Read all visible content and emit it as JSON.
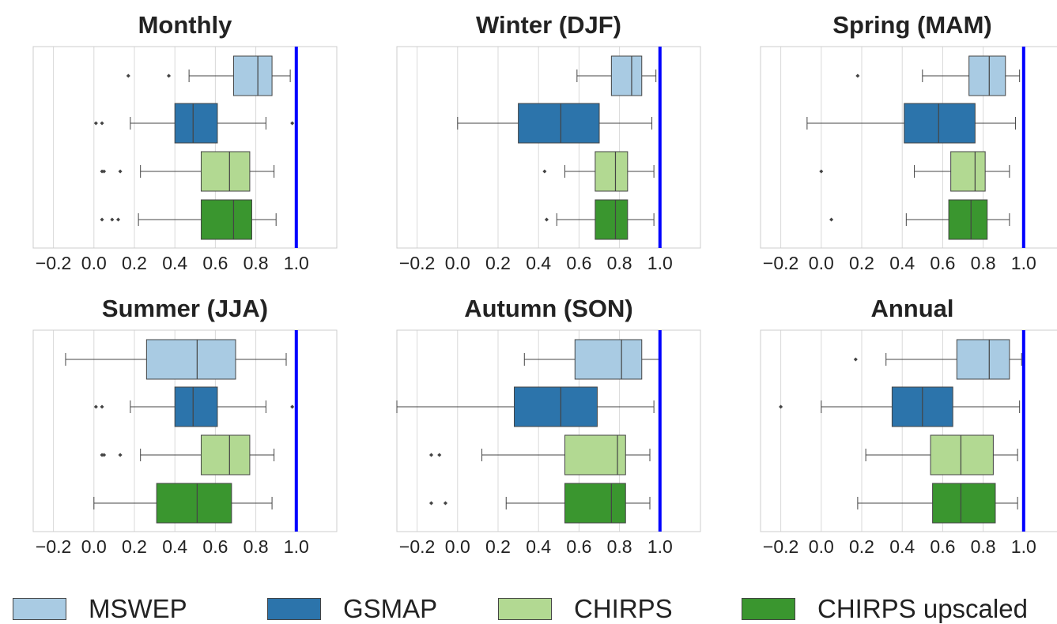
{
  "chart_data": [
    {
      "type": "boxplot",
      "title": "Monthly",
      "xlim": [
        -0.3,
        1.2
      ],
      "xticks": [
        -0.2,
        0.0,
        0.2,
        0.4,
        0.6,
        0.8,
        1.0
      ],
      "xtick_labels": [
        "−0.2",
        "0.0",
        "0.2",
        "0.4",
        "0.6",
        "0.8",
        "1.0"
      ],
      "reference_line": 1.0,
      "grid": true,
      "series": [
        {
          "name": "MSWEP",
          "whisker_low": 0.47,
          "q1": 0.69,
          "median": 0.81,
          "q3": 0.88,
          "whisker_high": 0.97,
          "outliers": [
            0.17,
            0.37
          ]
        },
        {
          "name": "GSMAP",
          "whisker_low": 0.18,
          "q1": 0.4,
          "median": 0.49,
          "q3": 0.61,
          "whisker_high": 0.85,
          "outliers": [
            0.01,
            0.04,
            0.98
          ]
        },
        {
          "name": "CHIRPS",
          "whisker_low": 0.23,
          "q1": 0.53,
          "median": 0.67,
          "q3": 0.77,
          "whisker_high": 0.89,
          "outliers": [
            0.04,
            0.05,
            0.13
          ]
        },
        {
          "name": "CHIRPS upscaled",
          "whisker_low": 0.22,
          "q1": 0.53,
          "median": 0.69,
          "q3": 0.78,
          "whisker_high": 0.9,
          "outliers": [
            0.04,
            0.09,
            0.12
          ]
        }
      ]
    },
    {
      "type": "boxplot",
      "title": "Winter (DJF)",
      "xlim": [
        -0.3,
        1.2
      ],
      "xticks": [
        -0.2,
        0.0,
        0.2,
        0.4,
        0.6,
        0.8,
        1.0
      ],
      "xtick_labels": [
        "−0.2",
        "0.0",
        "0.2",
        "0.4",
        "0.6",
        "0.8",
        "1.0"
      ],
      "reference_line": 1.0,
      "grid": true,
      "series": [
        {
          "name": "MSWEP",
          "whisker_low": 0.59,
          "q1": 0.76,
          "median": 0.86,
          "q3": 0.91,
          "whisker_high": 0.98,
          "outliers": []
        },
        {
          "name": "GSMAP",
          "whisker_low": 0.0,
          "q1": 0.3,
          "median": 0.51,
          "q3": 0.7,
          "whisker_high": 0.96,
          "outliers": []
        },
        {
          "name": "CHIRPS",
          "whisker_low": 0.53,
          "q1": 0.68,
          "median": 0.78,
          "q3": 0.84,
          "whisker_high": 0.97,
          "outliers": [
            0.43
          ]
        },
        {
          "name": "CHIRPS upscaled",
          "whisker_low": 0.49,
          "q1": 0.68,
          "median": 0.78,
          "q3": 0.84,
          "whisker_high": 0.97,
          "outliers": [
            0.44
          ]
        }
      ]
    },
    {
      "type": "boxplot",
      "title": "Spring (MAM)",
      "xlim": [
        -0.3,
        1.2
      ],
      "xticks": [
        -0.2,
        0.0,
        0.2,
        0.4,
        0.6,
        0.8,
        1.0
      ],
      "xtick_labels": [
        "−0.2",
        "0.0",
        "0.2",
        "0.4",
        "0.6",
        "0.8",
        "1.0"
      ],
      "reference_line": 1.0,
      "grid": true,
      "series": [
        {
          "name": "MSWEP",
          "whisker_low": 0.5,
          "q1": 0.73,
          "median": 0.83,
          "q3": 0.91,
          "whisker_high": 0.98,
          "outliers": [
            0.18
          ]
        },
        {
          "name": "GSMAP",
          "whisker_low": -0.07,
          "q1": 0.41,
          "median": 0.58,
          "q3": 0.76,
          "whisker_high": 0.96,
          "outliers": []
        },
        {
          "name": "CHIRPS",
          "whisker_low": 0.46,
          "q1": 0.64,
          "median": 0.76,
          "q3": 0.81,
          "whisker_high": 0.93,
          "outliers": [
            0.0
          ]
        },
        {
          "name": "CHIRPS upscaled",
          "whisker_low": 0.42,
          "q1": 0.63,
          "median": 0.74,
          "q3": 0.82,
          "whisker_high": 0.93,
          "outliers": [
            0.05
          ]
        }
      ]
    },
    {
      "type": "boxplot",
      "title": "Summer (JJA)",
      "xlim": [
        -0.3,
        1.2
      ],
      "xticks": [
        -0.2,
        0.0,
        0.2,
        0.4,
        0.6,
        0.8,
        1.0
      ],
      "xtick_labels": [
        "−0.2",
        "0.0",
        "0.2",
        "0.4",
        "0.6",
        "0.8",
        "1.0"
      ],
      "reference_line": 1.0,
      "grid": true,
      "series": [
        {
          "name": "MSWEP",
          "whisker_low": -0.14,
          "q1": 0.26,
          "median": 0.51,
          "q3": 0.7,
          "whisker_high": 0.95,
          "outliers": []
        },
        {
          "name": "GSMAP",
          "whisker_low": 0.18,
          "q1": 0.4,
          "median": 0.49,
          "q3": 0.61,
          "whisker_high": 0.85,
          "outliers": [
            0.01,
            0.04,
            0.98
          ]
        },
        {
          "name": "CHIRPS",
          "whisker_low": 0.23,
          "q1": 0.53,
          "median": 0.67,
          "q3": 0.77,
          "whisker_high": 0.89,
          "outliers": [
            0.04,
            0.05,
            0.13
          ]
        },
        {
          "name": "CHIRPS upscaled",
          "whisker_low": 0.0,
          "q1": 0.31,
          "median": 0.51,
          "q3": 0.68,
          "whisker_high": 0.88,
          "outliers": []
        }
      ]
    },
    {
      "type": "boxplot",
      "title": "Autumn (SON)",
      "xlim": [
        -0.3,
        1.2
      ],
      "xticks": [
        -0.2,
        0.0,
        0.2,
        0.4,
        0.6,
        0.8,
        1.0
      ],
      "xtick_labels": [
        "−0.2",
        "0.0",
        "0.2",
        "0.4",
        "0.6",
        "0.8",
        "1.0"
      ],
      "reference_line": 1.0,
      "grid": true,
      "series": [
        {
          "name": "MSWEP",
          "whisker_low": 0.33,
          "q1": 0.58,
          "median": 0.81,
          "q3": 0.91,
          "whisker_high": 1.0,
          "outliers": []
        },
        {
          "name": "GSMAP",
          "whisker_low": -0.3,
          "q1": 0.28,
          "median": 0.51,
          "q3": 0.69,
          "whisker_high": 0.97,
          "outliers": []
        },
        {
          "name": "CHIRPS",
          "whisker_low": 0.12,
          "q1": 0.53,
          "median": 0.79,
          "q3": 0.83,
          "whisker_high": 0.95,
          "outliers": [
            -0.13,
            -0.09
          ]
        },
        {
          "name": "CHIRPS upscaled",
          "whisker_low": 0.24,
          "q1": 0.53,
          "median": 0.76,
          "q3": 0.83,
          "whisker_high": 0.95,
          "outliers": [
            -0.13,
            -0.06
          ]
        }
      ]
    },
    {
      "type": "boxplot",
      "title": "Annual",
      "xlim": [
        -0.3,
        1.2
      ],
      "xticks": [
        -0.2,
        0.0,
        0.2,
        0.4,
        0.6,
        0.8,
        1.0
      ],
      "xtick_labels": [
        "−0.2",
        "0.0",
        "0.2",
        "0.4",
        "0.6",
        "0.8",
        "1.0"
      ],
      "reference_line": 1.0,
      "grid": true,
      "series": [
        {
          "name": "MSWEP",
          "whisker_low": 0.32,
          "q1": 0.67,
          "median": 0.83,
          "q3": 0.93,
          "whisker_high": 0.99,
          "outliers": [
            0.17
          ]
        },
        {
          "name": "GSMAP",
          "whisker_low": 0.0,
          "q1": 0.35,
          "median": 0.5,
          "q3": 0.65,
          "whisker_high": 0.98,
          "outliers": [
            -0.2
          ]
        },
        {
          "name": "CHIRPS",
          "whisker_low": 0.22,
          "q1": 0.54,
          "median": 0.69,
          "q3": 0.85,
          "whisker_high": 0.97,
          "outliers": []
        },
        {
          "name": "CHIRPS upscaled",
          "whisker_low": 0.18,
          "q1": 0.55,
          "median": 0.69,
          "q3": 0.86,
          "whisker_high": 0.97,
          "outliers": []
        }
      ]
    }
  ],
  "colors": {
    "MSWEP": "#a9cbe3",
    "GSMAP": "#2c74ab",
    "CHIRPS": "#b2d992",
    "CHIRPS upscaled": "#3a962f",
    "reference_line": "#0000ff"
  },
  "legend": {
    "position": "bottom",
    "items": [
      {
        "label": "MSWEP",
        "color": "#a9cbe3"
      },
      {
        "label": "GSMAP",
        "color": "#2c74ab"
      },
      {
        "label": "CHIRPS",
        "color": "#b2d992"
      },
      {
        "label": "CHIRPS upscaled",
        "color": "#3a962f"
      }
    ]
  }
}
